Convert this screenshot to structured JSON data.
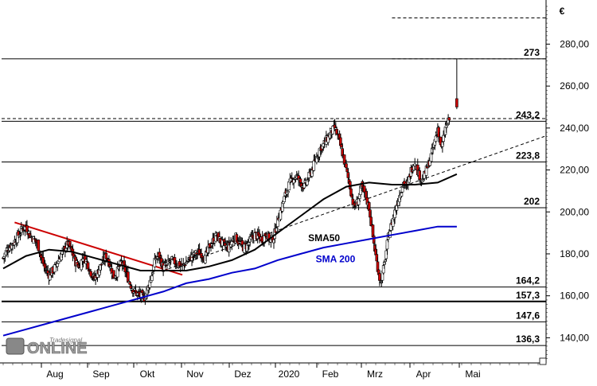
{
  "chart_data": {
    "type": "candlestick",
    "currency_label": "€",
    "ylim": [
      128,
      298
    ],
    "y_ticks": [
      140,
      160,
      180,
      200,
      220,
      240,
      260,
      280
    ],
    "y_tick_labels": [
      "140,00",
      "160,00",
      "180,00",
      "200,00",
      "220,00",
      "240,00",
      "260,00",
      "280,00"
    ],
    "x_labels": [
      "Aug",
      "Sep",
      "Okt",
      "Nov",
      "Dez",
      "2020",
      "Feb",
      "Mrz",
      "Apr",
      "Mai"
    ],
    "grid": false,
    "horizontal_levels": [
      {
        "value": 273,
        "label": "273"
      },
      {
        "value": 243.2,
        "label": "243,2"
      },
      {
        "value": 223.8,
        "label": "223,8"
      },
      {
        "value": 202,
        "label": "202"
      },
      {
        "value": 164.2,
        "label": "164,2"
      },
      {
        "value": 157.3,
        "label": "157,3"
      },
      {
        "value": 147.6,
        "label": "147,6"
      },
      {
        "value": 136.3,
        "label": "136,3"
      }
    ],
    "dashed_levels": [
      244.5,
      292.5,
      273
    ],
    "price_path": [
      [
        0,
        178
      ],
      [
        1,
        182
      ],
      [
        2,
        184
      ],
      [
        3,
        186
      ],
      [
        4,
        189
      ],
      [
        5,
        192
      ],
      [
        6,
        193
      ],
      [
        7,
        189
      ],
      [
        8,
        187
      ],
      [
        9,
        185
      ],
      [
        10,
        178
      ],
      [
        11,
        173
      ],
      [
        12,
        170
      ],
      [
        13,
        172
      ],
      [
        14,
        175
      ],
      [
        15,
        179
      ],
      [
        16,
        182
      ],
      [
        17,
        185
      ],
      [
        18,
        181
      ],
      [
        19,
        176
      ],
      [
        20,
        174
      ],
      [
        21,
        179
      ],
      [
        22,
        176
      ],
      [
        23,
        171
      ],
      [
        24,
        168
      ],
      [
        25,
        172
      ],
      [
        26,
        176
      ],
      [
        27,
        179
      ],
      [
        28,
        175
      ],
      [
        29,
        169
      ],
      [
        30,
        172
      ],
      [
        31,
        176
      ],
      [
        32,
        172
      ],
      [
        33,
        167
      ],
      [
        34,
        163
      ],
      [
        35,
        161
      ],
      [
        36,
        160
      ],
      [
        37,
        159
      ],
      [
        38,
        164
      ],
      [
        39,
        170
      ],
      [
        40,
        178
      ],
      [
        41,
        179
      ],
      [
        42,
        173
      ],
      [
        43,
        175
      ],
      [
        44,
        177
      ],
      [
        45,
        176
      ],
      [
        46,
        175
      ],
      [
        47,
        174
      ],
      [
        48,
        176
      ],
      [
        49,
        178
      ],
      [
        50,
        179
      ],
      [
        51,
        181
      ],
      [
        52,
        180
      ],
      [
        53,
        178
      ],
      [
        54,
        183
      ],
      [
        55,
        186
      ],
      [
        56,
        189
      ],
      [
        57,
        186
      ],
      [
        58,
        184
      ],
      [
        59,
        183
      ],
      [
        60,
        186
      ],
      [
        61,
        188
      ],
      [
        62,
        185
      ],
      [
        63,
        183
      ],
      [
        64,
        184
      ],
      [
        65,
        187
      ],
      [
        66,
        189
      ],
      [
        67,
        188
      ],
      [
        68,
        187
      ],
      [
        69,
        190
      ],
      [
        70,
        186
      ],
      [
        71,
        188
      ],
      [
        72,
        196
      ],
      [
        73,
        202
      ],
      [
        74,
        208
      ],
      [
        75,
        213
      ],
      [
        76,
        216
      ],
      [
        77,
        217
      ],
      [
        78,
        214
      ],
      [
        79,
        212
      ],
      [
        80,
        216
      ],
      [
        81,
        220
      ],
      [
        82,
        225
      ],
      [
        83,
        230
      ],
      [
        84,
        232
      ],
      [
        85,
        235
      ],
      [
        86,
        238
      ],
      [
        87,
        240
      ],
      [
        88,
        235
      ],
      [
        89,
        228
      ],
      [
        90,
        220
      ],
      [
        91,
        212
      ],
      [
        92,
        202
      ],
      [
        93,
        205
      ],
      [
        94,
        212
      ],
      [
        95,
        208
      ],
      [
        96,
        202
      ],
      [
        97,
        188
      ],
      [
        98,
        176
      ],
      [
        99,
        166
      ],
      [
        100,
        175
      ],
      [
        101,
        188
      ],
      [
        102,
        195
      ],
      [
        103,
        202
      ],
      [
        104,
        208
      ],
      [
        105,
        214
      ],
      [
        106,
        212
      ],
      [
        107,
        220
      ],
      [
        108,
        224
      ],
      [
        109,
        218
      ],
      [
        110,
        215
      ],
      [
        111,
        220
      ],
      [
        112,
        225
      ],
      [
        113,
        232
      ],
      [
        114,
        240
      ],
      [
        115,
        230
      ],
      [
        116,
        240
      ],
      [
        117,
        244
      ]
    ],
    "post_gap_wick": {
      "index": 119,
      "high": 273,
      "low": 249,
      "body_top": 254,
      "body_bottom": 250
    },
    "series": [
      {
        "name": "SMA50",
        "color": "#000000",
        "points": [
          [
            0,
            173
          ],
          [
            6,
            179
          ],
          [
            12,
            182
          ],
          [
            18,
            181
          ],
          [
            24,
            178
          ],
          [
            30,
            175
          ],
          [
            36,
            172
          ],
          [
            42,
            172
          ],
          [
            48,
            172
          ],
          [
            54,
            174
          ],
          [
            60,
            177
          ],
          [
            66,
            182
          ],
          [
            72,
            190
          ],
          [
            78,
            198
          ],
          [
            84,
            206
          ],
          [
            90,
            212
          ],
          [
            96,
            214
          ],
          [
            102,
            213
          ],
          [
            108,
            213
          ],
          [
            114,
            214
          ],
          [
            119,
            218
          ]
        ]
      },
      {
        "name": "SMA 200",
        "color": "#0000cc",
        "points": [
          [
            0,
            141
          ],
          [
            6,
            144
          ],
          [
            12,
            147
          ],
          [
            18,
            150
          ],
          [
            24,
            153
          ],
          [
            30,
            156
          ],
          [
            36,
            159
          ],
          [
            42,
            162
          ],
          [
            48,
            166
          ],
          [
            54,
            168
          ],
          [
            60,
            171
          ],
          [
            66,
            173
          ],
          [
            72,
            177
          ],
          [
            78,
            180
          ],
          [
            84,
            183
          ],
          [
            90,
            185
          ],
          [
            96,
            187
          ],
          [
            102,
            189
          ],
          [
            108,
            191
          ],
          [
            114,
            193
          ],
          [
            119,
            193
          ]
        ]
      }
    ],
    "trendlines": [
      {
        "color": "#cc0000",
        "from": [
          3,
          195
        ],
        "to": [
          47,
          170
        ]
      },
      {
        "color": "#000000",
        "dashed": true,
        "from": [
          42,
          172
        ],
        "to": [
          142,
          236
        ]
      }
    ],
    "annotations": [
      {
        "text": "SMA50",
        "color": "#000000",
        "x": 80,
        "y": 186
      },
      {
        "text": "SMA 200",
        "color": "#0000cc",
        "x": 82,
        "y": 176
      }
    ],
    "logo_text": "ONLINE",
    "logo_subtext": "Tradesignal"
  }
}
